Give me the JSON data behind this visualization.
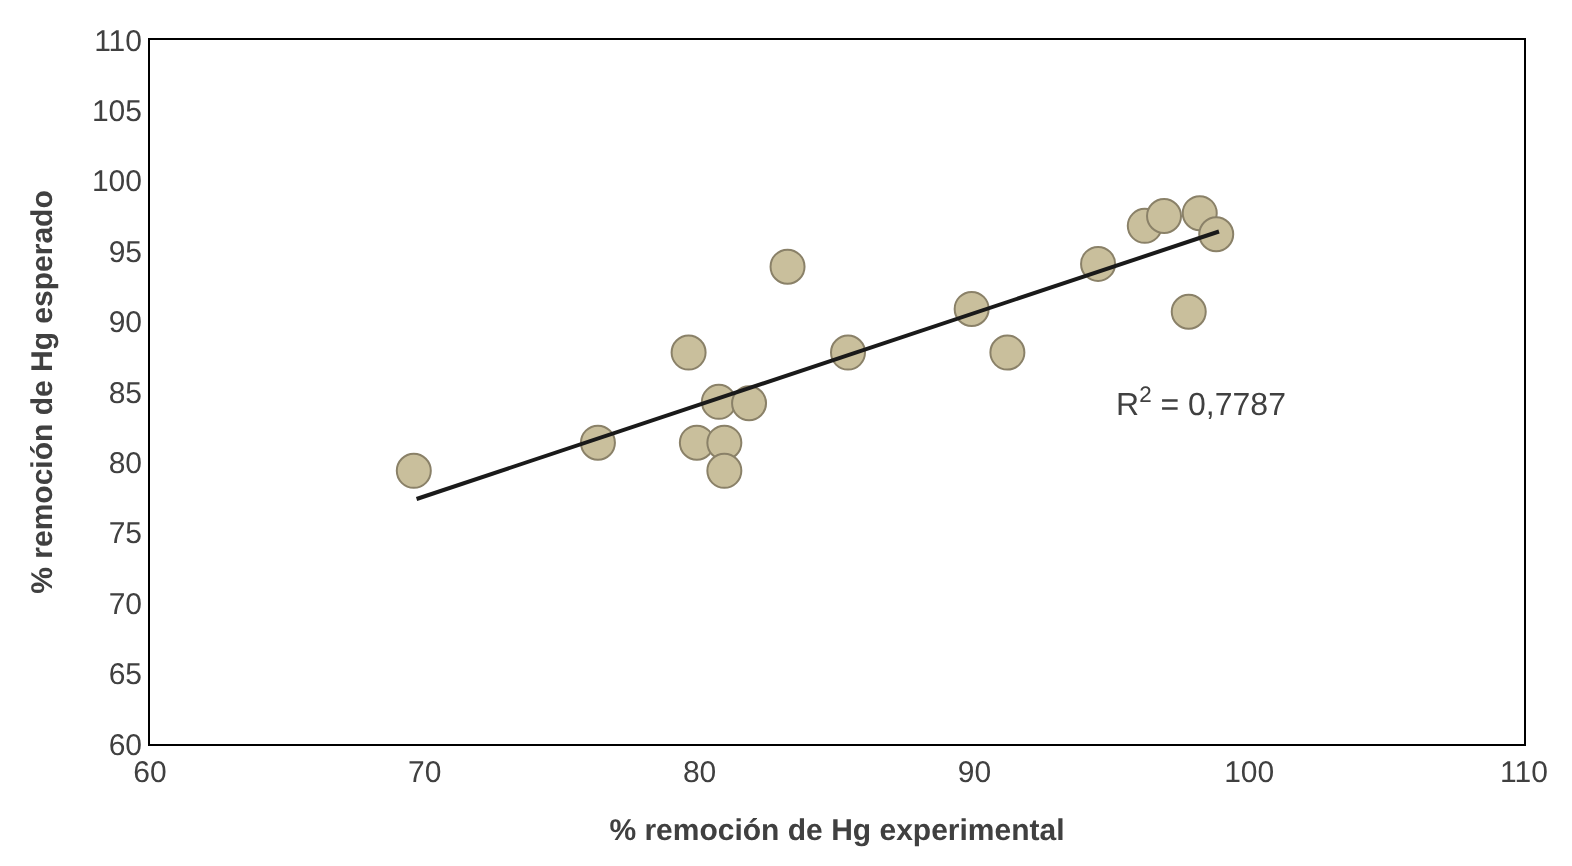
{
  "chart_data": {
    "type": "scatter",
    "xlabel": "% remoción de Hg experimental",
    "ylabel": "% remoción de Hg esperado",
    "xlim": [
      60,
      110
    ],
    "xticks": [
      60,
      70,
      80,
      90,
      100,
      110
    ],
    "ylim": [
      60,
      110
    ],
    "yticks": [
      60,
      65,
      70,
      75,
      80,
      85,
      90,
      95,
      100,
      105,
      110
    ],
    "series": [
      {
        "color": "#c9bf9c",
        "x": [
          69.6,
          76.3,
          79.6,
          79.9,
          80.7,
          80.9,
          80.9,
          81.8,
          83.2,
          85.4,
          89.9,
          91.2,
          94.5,
          96.2,
          96.9,
          98.2,
          98.8,
          97.8
        ],
        "values": [
          79.4,
          81.4,
          87.8,
          81.4,
          84.3,
          81.4,
          79.4,
          84.2,
          93.9,
          87.8,
          90.9,
          87.8,
          94.1,
          96.8,
          97.5,
          97.7,
          96.2,
          90.7
        ]
      },
      {
        "type": "line",
        "color": "#1a1a1a",
        "x": [
          69.7,
          98.9
        ],
        "values": [
          77.4,
          96.4
        ]
      }
    ],
    "annotations": [
      "R$^{2}$ = 0,7787"
    ]
  }
}
